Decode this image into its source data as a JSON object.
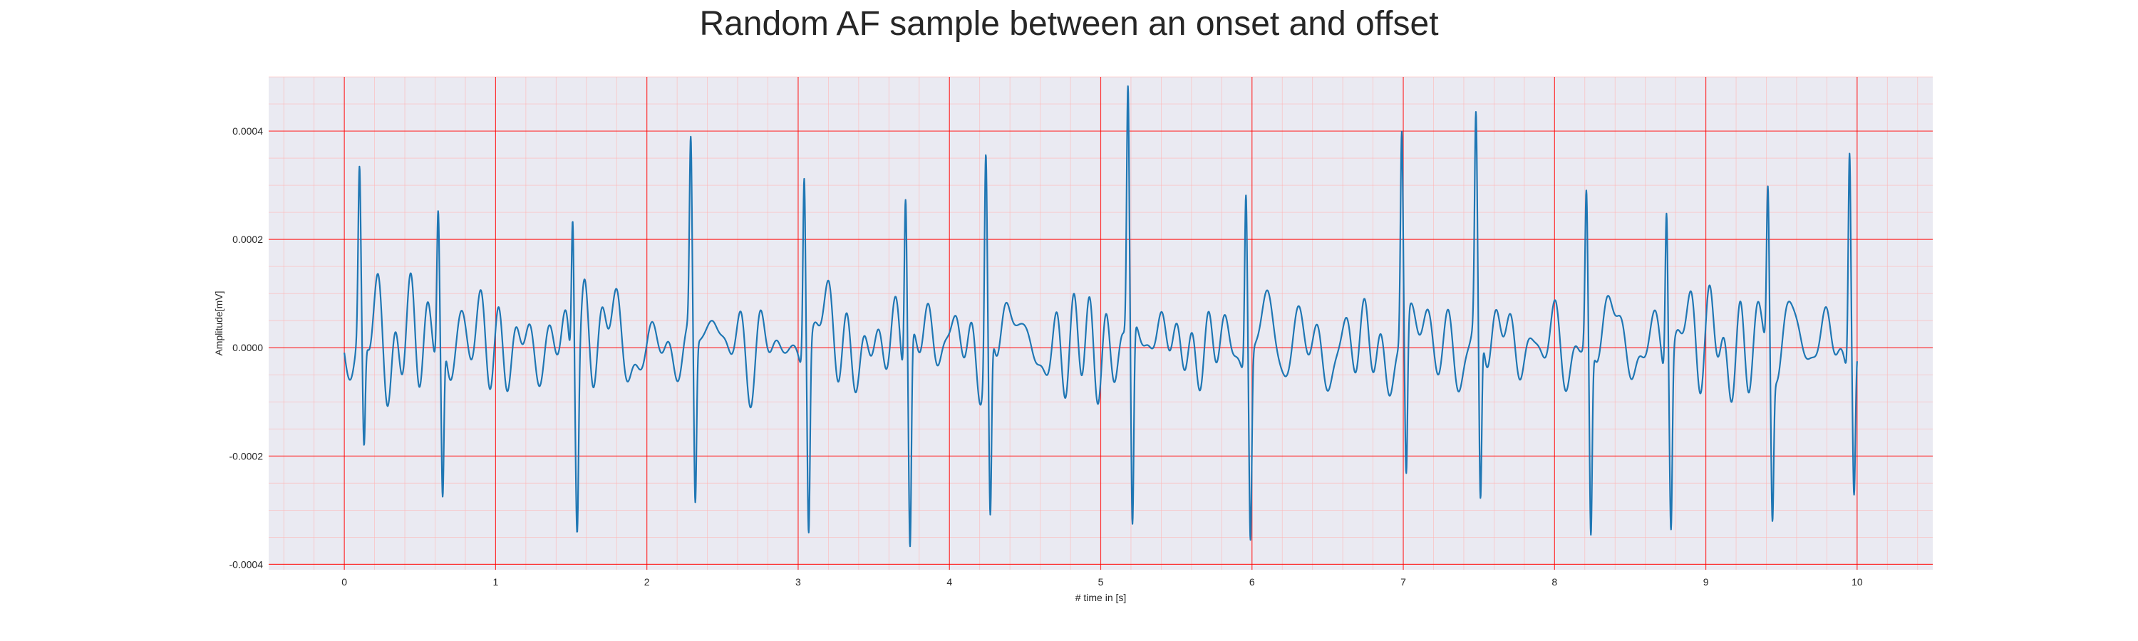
{
  "chart_data": {
    "type": "line",
    "title": "Random AF sample between an onset and offset",
    "xlabel": "# time in [s]",
    "ylabel": "Amplitude[mV]",
    "xlim": [
      -0.5,
      10.5
    ],
    "ylim": [
      -0.00041,
      0.0005
    ],
    "xticks": [
      0,
      1,
      2,
      3,
      4,
      5,
      6,
      7,
      8,
      9,
      10
    ],
    "yticks": [
      -0.0004,
      -0.0002,
      0.0,
      0.0002,
      0.0004
    ],
    "ytick_labels": [
      "-0.0004",
      "-0.0002",
      "0.0000",
      "0.0002",
      "0.0004"
    ],
    "xtick_labels": [
      "0",
      "1",
      "2",
      "3",
      "4",
      "5",
      "6",
      "7",
      "8",
      "9",
      "10"
    ],
    "grid": true,
    "minor_grid": true,
    "legend": "none",
    "colors": {
      "line": "#1f77b4",
      "plot_background": "#eaeaf2",
      "major_grid": "#ff0000",
      "minor_grid": "#ffb3b3"
    },
    "series": [
      {
        "peaks": [
          {
            "t": 0.1,
            "max": 0.000295,
            "min": -0.000215
          },
          {
            "t": 0.62,
            "max": 0.000265,
            "min": -0.00029
          },
          {
            "t": 1.51,
            "max": 0.00033,
            "min": -0.00025
          },
          {
            "t": 2.29,
            "max": 0.00035,
            "min": -0.000305
          },
          {
            "t": 3.04,
            "max": 0.00036,
            "min": -0.00033
          },
          {
            "t": 3.71,
            "max": 0.000335,
            "min": -0.00037
          },
          {
            "t": 4.24,
            "max": 0.00037,
            "min": -0.00035
          },
          {
            "t": 5.18,
            "max": 0.000465,
            "min": -0.000365
          },
          {
            "t": 5.96,
            "max": 0.00033,
            "min": -0.000335
          },
          {
            "t": 6.99,
            "max": 0.00039,
            "min": -0.00028
          },
          {
            "t": 7.48,
            "max": 0.000365,
            "min": -0.00034
          },
          {
            "t": 8.21,
            "max": 0.00028,
            "min": -0.000355
          },
          {
            "t": 8.74,
            "max": 0.000315,
            "min": -0.000305
          },
          {
            "t": 9.41,
            "max": 0.000305,
            "min": -0.00028
          },
          {
            "t": 9.95,
            "max": 0.00041,
            "min": -0.000245
          }
        ]
      }
    ]
  }
}
